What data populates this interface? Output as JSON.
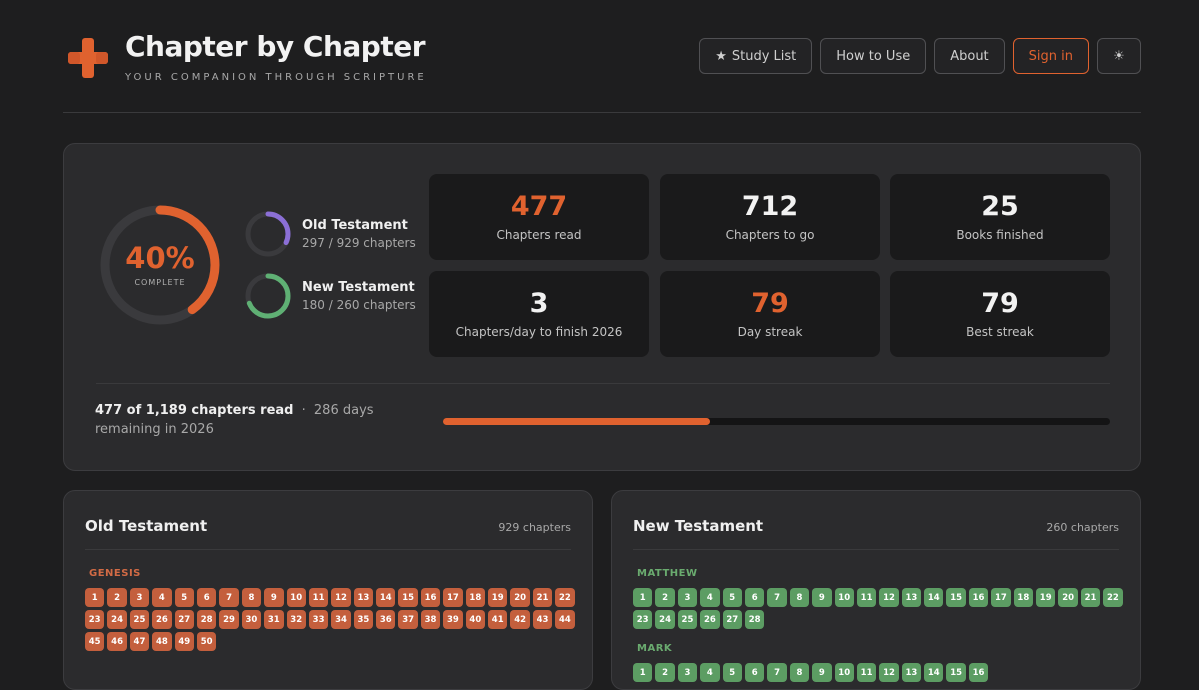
{
  "header": {
    "title": "Chapter by Chapter",
    "tagline": "YOUR COMPANION THROUGH SCRIPTURE",
    "nav": {
      "study_list": "Study List",
      "how_to_use": "How to Use",
      "about": "About",
      "sign_in": "Sign in",
      "theme_icon": "☀"
    }
  },
  "summary": {
    "percent": "40%",
    "percent_value": 0.4,
    "percent_label": "COMPLETE",
    "old_testament": {
      "name": "Old Testament",
      "count": "297 / 929 chapters",
      "fraction": 0.32
    },
    "new_testament": {
      "name": "New Testament",
      "count": "180 / 260 chapters",
      "fraction": 0.69
    },
    "stats": [
      {
        "value": "477",
        "label": "Chapters read"
      },
      {
        "value": "712",
        "label": "Chapters to go"
      },
      {
        "value": "25",
        "label": "Books finished"
      },
      {
        "value": "3",
        "label": "Chapters/day to finish 2026"
      },
      {
        "value": "79",
        "label": "Day streak"
      },
      {
        "value": "79",
        "label": "Best streak"
      }
    ],
    "progress_strong": "477 of 1,189 chapters read",
    "progress_sep": "·",
    "progress_rest": "286 days remaining in 2026",
    "progress_fraction": 0.401
  },
  "old_testament_panel": {
    "title": "Old Testament",
    "count": "929 chapters",
    "books": [
      {
        "name": "GENESIS",
        "chapters": 50
      }
    ]
  },
  "new_testament_panel": {
    "title": "New Testament",
    "count": "260 chapters",
    "books": [
      {
        "name": "MATTHEW",
        "chapters": 28
      },
      {
        "name": "MARK",
        "chapters": 16
      }
    ]
  },
  "colors": {
    "accent": "#e0622f",
    "old_testament_ring": "#8b6fd6",
    "new_testament_ring": "#5fb074",
    "ot_chip": "#c45f3d",
    "nt_chip": "#5c9d63"
  }
}
